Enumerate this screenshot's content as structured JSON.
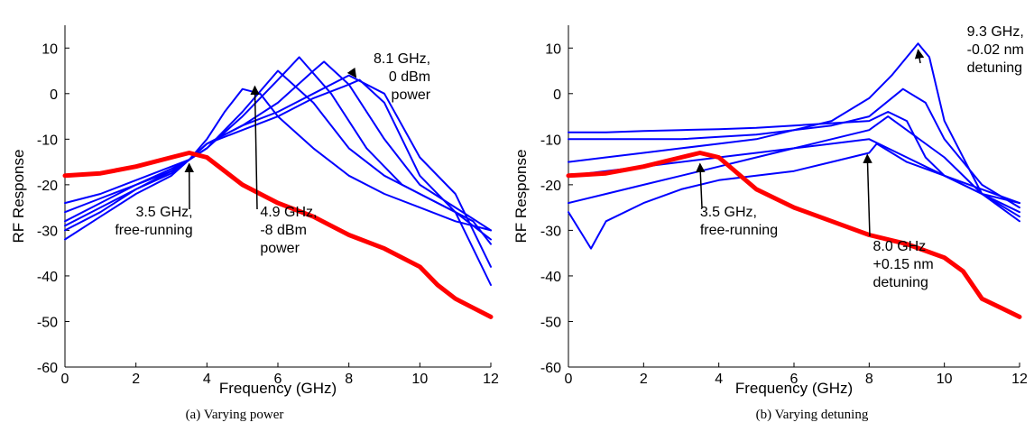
{
  "chart_data": [
    {
      "type": "line",
      "caption": "(a) Varying power",
      "xlabel": "Frequency (GHz)",
      "ylabel": "RF Response",
      "xlim": [
        0,
        12
      ],
      "ylim": [
        -60,
        15
      ],
      "xticks": [
        "0",
        "2",
        "4",
        "6",
        "8",
        "10",
        "12"
      ],
      "yticks": [
        "10",
        "0",
        "-10",
        "-20",
        "-30",
        "-40",
        "-50",
        "-60"
      ],
      "colors": {
        "free_running": "#ff0000",
        "injected": "#0000ff"
      },
      "series": [
        {
          "kind": "free-running",
          "x": [
            0,
            1,
            2,
            3,
            3.5,
            4,
            5,
            6,
            7,
            8,
            9,
            10,
            10.5,
            11,
            11.5,
            12
          ],
          "y": [
            -18,
            -17.5,
            -16,
            -14,
            -13,
            -14,
            -20,
            -24,
            -27,
            -31,
            -34,
            -38,
            -42,
            -45,
            -47,
            -49
          ]
        },
        {
          "kind": "injected",
          "x": [
            0,
            1,
            2,
            3,
            3.5,
            4,
            4.5,
            5,
            5.5,
            6,
            7,
            8,
            9,
            10,
            11,
            12
          ],
          "y": [
            -24,
            -22,
            -19,
            -16,
            -14.5,
            -10,
            -4,
            1,
            0,
            -5,
            -12,
            -18,
            -22,
            -25,
            -28,
            -30
          ]
        },
        {
          "kind": "injected",
          "x": [
            0,
            1,
            2,
            3,
            3.5,
            4,
            5,
            6,
            7,
            8,
            9,
            10,
            11,
            12
          ],
          "y": [
            -26,
            -23,
            -20,
            -16.5,
            -14.5,
            -12,
            -4,
            5,
            -2,
            -12,
            -18,
            -22,
            -26,
            -32
          ]
        },
        {
          "kind": "injected",
          "x": [
            0,
            1,
            2,
            3,
            3.5,
            4,
            5,
            6,
            6.6,
            7.5,
            8.5,
            9.5,
            10.5,
            11.5,
            12
          ],
          "y": [
            -28,
            -24,
            -20,
            -17,
            -14.5,
            -12,
            -5,
            3,
            8,
            0,
            -12,
            -20,
            -24,
            -28,
            -33
          ]
        },
        {
          "kind": "injected",
          "x": [
            0,
            1,
            2,
            3,
            3.5,
            4,
            5,
            6,
            7,
            7.3,
            8,
            9,
            10,
            11,
            12
          ],
          "y": [
            -29,
            -25,
            -21,
            -17,
            -14.5,
            -11,
            -7,
            -2,
            5,
            7,
            2,
            -10,
            -20,
            -25,
            -30
          ]
        },
        {
          "kind": "injected",
          "x": [
            0,
            1,
            2,
            3,
            3.5,
            4,
            5,
            6,
            7,
            8,
            9,
            10,
            11,
            12
          ],
          "y": [
            -30,
            -26,
            -21,
            -17.5,
            -14.5,
            -11,
            -7,
            -4,
            0,
            4,
            0,
            -14,
            -22,
            -38
          ]
        },
        {
          "kind": "injected",
          "x": [
            0,
            1,
            2,
            3,
            3.5,
            4,
            5,
            6,
            7,
            8,
            8.3,
            9,
            10,
            11,
            12
          ],
          "y": [
            -32,
            -27,
            -22,
            -18,
            -14.5,
            -11,
            -8,
            -5,
            -1,
            2,
            3,
            -2,
            -18,
            -26,
            -42
          ]
        }
      ],
      "annotations": [
        {
          "lines": [
            "3.5 GHz,",
            "free-running"
          ],
          "point": [
            3.5,
            -15
          ]
        },
        {
          "lines": [
            "4.9 GHz,",
            "-8 dBm",
            "power"
          ],
          "point": [
            5.35,
            2
          ]
        },
        {
          "lines": [
            "8.1 GHz,",
            "0 dBm",
            "power"
          ],
          "point": [
            8.2,
            4
          ]
        }
      ]
    },
    {
      "type": "line",
      "caption": "(b) Varying detuning",
      "xlabel": "Frequency (GHz)",
      "ylabel": "RF Response",
      "xlim": [
        0,
        12
      ],
      "ylim": [
        -60,
        15
      ],
      "xticks": [
        "0",
        "2",
        "4",
        "6",
        "8",
        "10",
        "12"
      ],
      "yticks": [
        "10",
        "0",
        "-10",
        "-20",
        "-30",
        "-40",
        "-50",
        "-60"
      ],
      "colors": {
        "free_running": "#ff0000",
        "injected": "#0000ff"
      },
      "series": [
        {
          "kind": "free-running",
          "x": [
            0,
            1,
            2,
            3,
            3.5,
            4,
            5,
            6,
            7,
            8,
            9,
            10,
            10.5,
            11,
            11.5,
            12
          ],
          "y": [
            -18,
            -17.5,
            -16,
            -14,
            -13,
            -14,
            -21,
            -25,
            -28,
            -31,
            -33,
            -36,
            -39,
            -45,
            -47,
            -49
          ]
        },
        {
          "kind": "injected",
          "x": [
            0,
            1,
            2,
            3,
            4,
            5,
            6,
            7,
            8,
            8.5,
            9,
            9.5,
            10,
            11,
            12
          ],
          "y": [
            -8.5,
            -8.5,
            -8.2,
            -8,
            -7.8,
            -7.5,
            -7,
            -6.5,
            -6,
            -4,
            -6,
            -14,
            -18,
            -22,
            -28
          ]
        },
        {
          "kind": "injected",
          "x": [
            0,
            1,
            2,
            3,
            4,
            5,
            6,
            7,
            8,
            8.6,
            9.3,
            9.6,
            10,
            11,
            12
          ],
          "y": [
            -10,
            -10,
            -10,
            -10,
            -9.5,
            -9,
            -8,
            -6,
            -1,
            4,
            11,
            8,
            -6,
            -22,
            -27
          ]
        },
        {
          "kind": "injected",
          "x": [
            0,
            1,
            2,
            3,
            4,
            5,
            6,
            7,
            8,
            8.9,
            9.5,
            10,
            11,
            12
          ],
          "y": [
            -15,
            -14,
            -13,
            -12,
            -11,
            -10,
            -8,
            -7,
            -5,
            1,
            -2,
            -10,
            -20,
            -25
          ]
        },
        {
          "kind": "injected",
          "x": [
            0,
            1,
            2,
            3,
            4,
            5,
            6,
            7,
            8,
            8.5,
            9,
            10,
            11,
            12
          ],
          "y": [
            -18,
            -17,
            -16,
            -15,
            -14,
            -13,
            -12,
            -10,
            -8,
            -5,
            -8,
            -14,
            -22,
            -26
          ]
        },
        {
          "kind": "injected",
          "x": [
            0,
            0.3,
            0.6,
            1,
            2,
            3,
            4,
            5,
            6,
            7,
            8,
            8.2,
            9,
            10,
            11,
            12
          ],
          "y": [
            -26,
            -30,
            -34,
            -28,
            -24,
            -21,
            -19,
            -18,
            -17,
            -15,
            -13,
            -11,
            -15,
            -18,
            -21,
            -24
          ]
        },
        {
          "kind": "injected",
          "x": [
            0,
            1,
            2,
            3,
            4,
            5,
            6,
            7,
            8,
            9,
            10,
            11,
            12
          ],
          "y": [
            -24,
            -22,
            -20,
            -18,
            -16,
            -14,
            -12,
            -11,
            -10,
            -14,
            -18,
            -22,
            -24
          ]
        }
      ],
      "annotations": [
        {
          "lines": [
            "3.5 GHz,",
            "free-running"
          ],
          "point": [
            3.5,
            -15
          ]
        },
        {
          "lines": [
            "8.0 GHz",
            "+0.15 nm",
            "detuning"
          ],
          "point": [
            7.95,
            -13
          ]
        },
        {
          "lines": [
            "9.3 GHz,",
            "-0.02 nm",
            "detuning"
          ],
          "point": [
            9.3,
            10
          ]
        }
      ]
    }
  ]
}
